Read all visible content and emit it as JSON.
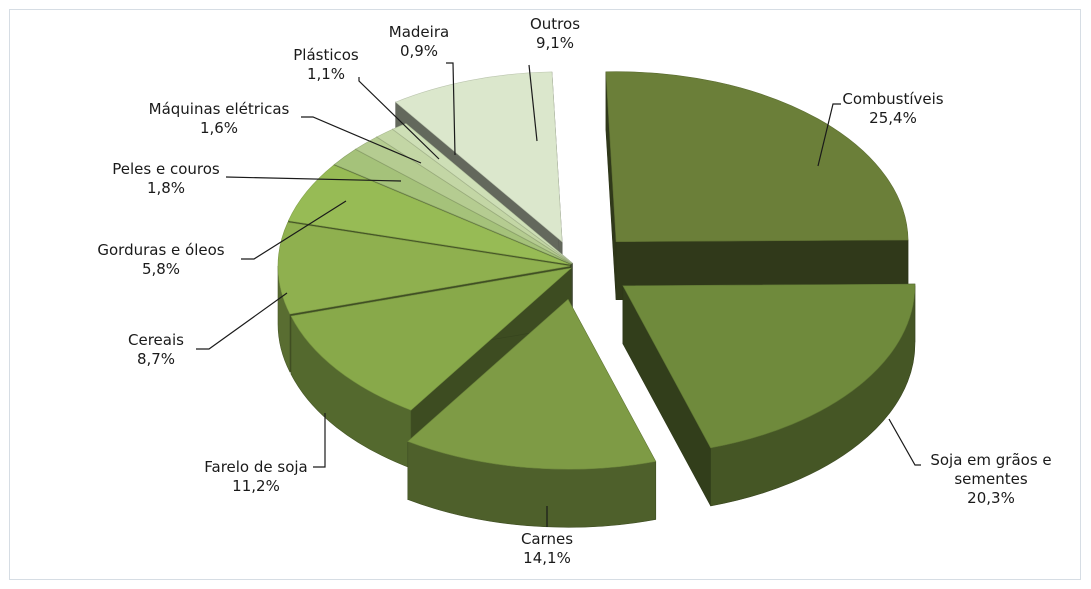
{
  "chart_data": {
    "type": "pie",
    "style": "3d-exploded",
    "legend": "none",
    "unit": "%",
    "slices": [
      {
        "label": "Combustíveis",
        "value": 25.4,
        "pct_label": "25,4%",
        "color": "#6b7f39"
      },
      {
        "label": "Soja em grãos e sementes",
        "value": 20.3,
        "pct_label": "20,3%",
        "color": "#6f8a3c"
      },
      {
        "label": "Carnes",
        "value": 14.1,
        "pct_label": "14,1%",
        "color": "#7e9b45"
      },
      {
        "label": "Farelo de soja",
        "value": 11.2,
        "pct_label": "11,2%",
        "color": "#88a94a"
      },
      {
        "label": "Cereais",
        "value": 8.7,
        "pct_label": "8,7%",
        "color": "#8fb04f"
      },
      {
        "label": "Gorduras e óleos",
        "value": 5.8,
        "pct_label": "5,8%",
        "color": "#97bb55"
      },
      {
        "label": "Peles e couros",
        "value": 1.8,
        "pct_label": "1,8%",
        "color": "#a5c27a"
      },
      {
        "label": "Máquinas elétricas",
        "value": 1.6,
        "pct_label": "1,6%",
        "color": "#b5cc91"
      },
      {
        "label": "Plásticos",
        "value": 1.1,
        "pct_label": "1,1%",
        "color": "#c3d6a5"
      },
      {
        "label": "Madeira",
        "value": 0.9,
        "pct_label": "0,9%",
        "color": "#cedfb6"
      },
      {
        "label": "Outros",
        "value": 9.1,
        "pct_label": "9,1%",
        "color": "#dbe7cc"
      }
    ]
  }
}
